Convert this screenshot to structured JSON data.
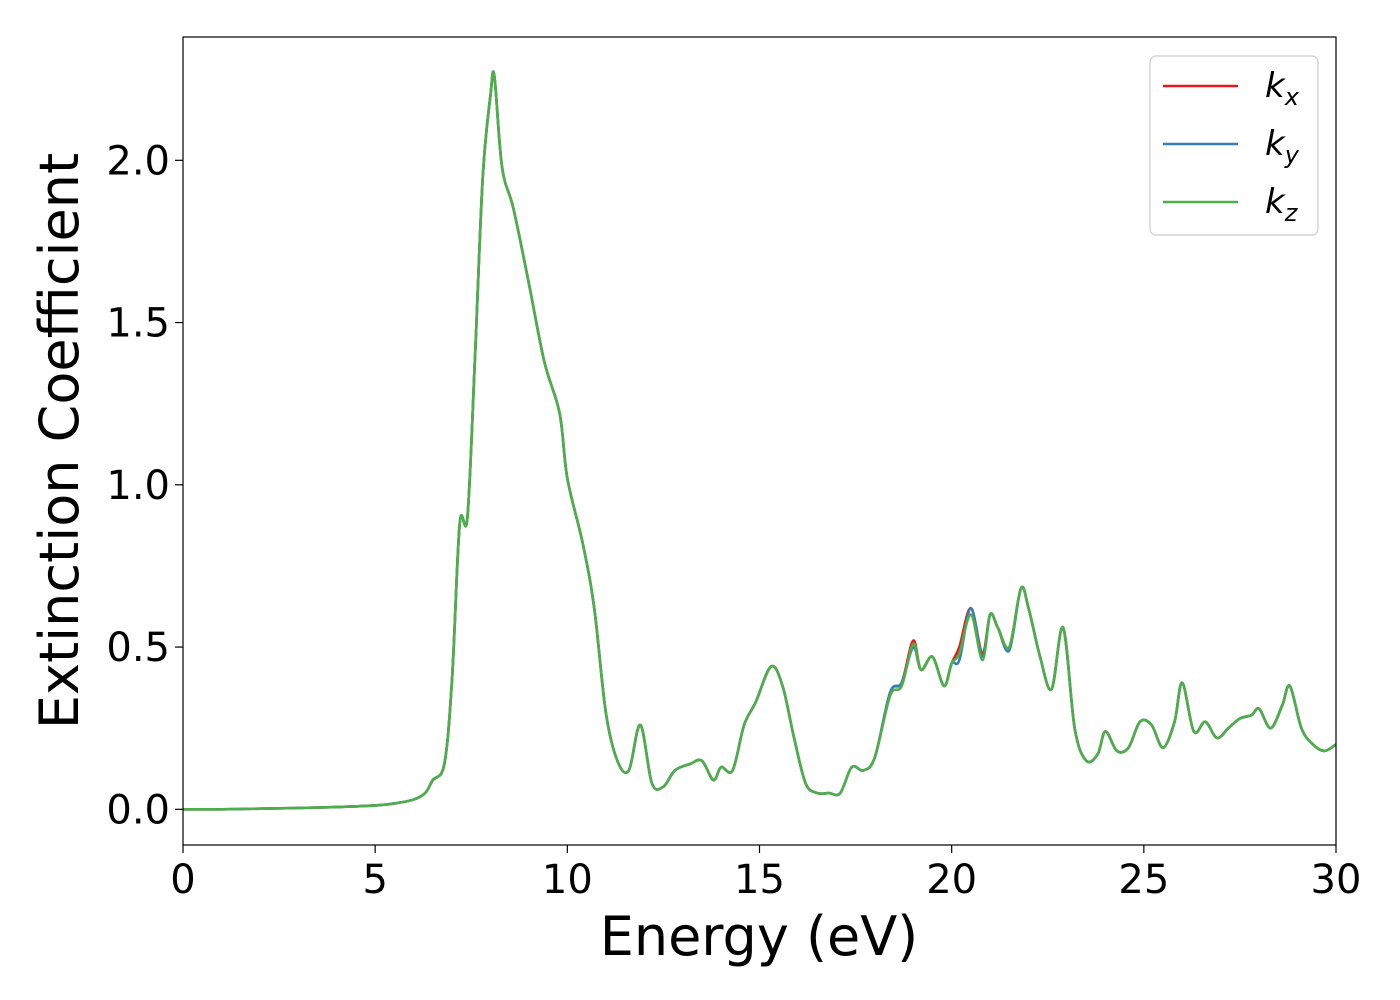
{
  "chart_data": {
    "type": "line",
    "xlabel": "Energy (eV)",
    "ylabel": "Extinction Coefficient",
    "xlim": [
      0,
      30
    ],
    "ylim": [
      -0.11,
      2.38
    ],
    "xticks": [
      0,
      5,
      10,
      15,
      20,
      25,
      30
    ],
    "xtick_labels": [
      "0",
      "5",
      "10",
      "15",
      "20",
      "25",
      "30"
    ],
    "yticks": [
      0.0,
      0.5,
      1.0,
      1.5,
      2.0
    ],
    "ytick_labels": [
      "0.0",
      "0.5",
      "1.0",
      "1.5",
      "2.0"
    ],
    "grid": false,
    "legend_position": "top-right",
    "x": [
      0,
      1,
      2,
      3,
      4,
      5,
      5.5,
      6,
      6.3,
      6.5,
      6.8,
      7.0,
      7.2,
      7.4,
      7.6,
      7.8,
      8.0,
      8.1,
      8.3,
      8.6,
      9.0,
      9.4,
      9.8,
      10.0,
      10.4,
      10.7,
      11.0,
      11.3,
      11.6,
      11.9,
      12.2,
      12.5,
      12.8,
      13.2,
      13.5,
      13.8,
      14.0,
      14.3,
      14.6,
      14.9,
      15.3,
      15.6,
      15.9,
      16.2,
      16.5,
      16.8,
      17.1,
      17.4,
      17.7,
      18.0,
      18.4,
      18.7,
      19.0,
      19.2,
      19.5,
      19.8,
      20.0,
      20.2,
      20.5,
      20.8,
      21.0,
      21.2,
      21.5,
      21.8,
      22.0,
      22.3,
      22.6,
      22.9,
      23.2,
      23.5,
      23.8,
      24.0,
      24.3,
      24.6,
      24.9,
      25.2,
      25.5,
      25.8,
      26.0,
      26.3,
      26.6,
      26.9,
      27.2,
      27.5,
      27.8,
      28.0,
      28.3,
      28.6,
      28.8,
      29.1,
      29.4,
      29.7,
      30.0
    ],
    "series": [
      {
        "name": "kx",
        "color": "#e41a1c",
        "values": [
          0.0,
          0.0,
          0.002,
          0.004,
          0.007,
          0.012,
          0.018,
          0.03,
          0.05,
          0.09,
          0.14,
          0.4,
          0.88,
          0.9,
          1.4,
          1.95,
          2.2,
          2.26,
          1.98,
          1.85,
          1.62,
          1.38,
          1.22,
          1.02,
          0.82,
          0.62,
          0.3,
          0.15,
          0.12,
          0.26,
          0.08,
          0.07,
          0.12,
          0.14,
          0.15,
          0.09,
          0.13,
          0.12,
          0.26,
          0.33,
          0.44,
          0.38,
          0.22,
          0.08,
          0.05,
          0.05,
          0.05,
          0.13,
          0.12,
          0.16,
          0.36,
          0.39,
          0.52,
          0.43,
          0.47,
          0.38,
          0.45,
          0.5,
          0.62,
          0.48,
          0.6,
          0.56,
          0.5,
          0.68,
          0.62,
          0.47,
          0.37,
          0.56,
          0.25,
          0.15,
          0.17,
          0.24,
          0.18,
          0.19,
          0.27,
          0.26,
          0.19,
          0.27,
          0.39,
          0.24,
          0.27,
          0.22,
          0.25,
          0.28,
          0.29,
          0.31,
          0.25,
          0.32,
          0.38,
          0.25,
          0.2,
          0.18,
          0.2
        ]
      },
      {
        "name": "ky",
        "color": "#377eb8",
        "values": [
          0.0,
          0.0,
          0.002,
          0.004,
          0.007,
          0.012,
          0.018,
          0.03,
          0.05,
          0.09,
          0.14,
          0.4,
          0.88,
          0.9,
          1.4,
          1.95,
          2.2,
          2.26,
          1.98,
          1.85,
          1.62,
          1.38,
          1.22,
          1.02,
          0.82,
          0.62,
          0.3,
          0.15,
          0.12,
          0.26,
          0.08,
          0.07,
          0.12,
          0.14,
          0.15,
          0.09,
          0.13,
          0.12,
          0.26,
          0.33,
          0.44,
          0.38,
          0.22,
          0.08,
          0.05,
          0.05,
          0.05,
          0.13,
          0.12,
          0.16,
          0.36,
          0.39,
          0.5,
          0.43,
          0.47,
          0.38,
          0.45,
          0.46,
          0.62,
          0.47,
          0.6,
          0.56,
          0.49,
          0.68,
          0.62,
          0.47,
          0.37,
          0.56,
          0.25,
          0.15,
          0.17,
          0.24,
          0.18,
          0.19,
          0.27,
          0.26,
          0.19,
          0.27,
          0.39,
          0.24,
          0.27,
          0.22,
          0.25,
          0.28,
          0.29,
          0.31,
          0.25,
          0.32,
          0.38,
          0.25,
          0.2,
          0.18,
          0.2
        ]
      },
      {
        "name": "kz",
        "color": "#4daf4a",
        "values": [
          0.0,
          0.0,
          0.002,
          0.004,
          0.007,
          0.012,
          0.018,
          0.03,
          0.05,
          0.09,
          0.14,
          0.4,
          0.88,
          0.9,
          1.4,
          1.95,
          2.2,
          2.26,
          1.98,
          1.85,
          1.62,
          1.38,
          1.22,
          1.02,
          0.82,
          0.62,
          0.3,
          0.15,
          0.12,
          0.26,
          0.08,
          0.07,
          0.12,
          0.14,
          0.15,
          0.09,
          0.13,
          0.12,
          0.26,
          0.33,
          0.44,
          0.38,
          0.22,
          0.08,
          0.05,
          0.05,
          0.05,
          0.13,
          0.12,
          0.16,
          0.35,
          0.38,
          0.51,
          0.43,
          0.47,
          0.38,
          0.45,
          0.48,
          0.6,
          0.46,
          0.6,
          0.56,
          0.5,
          0.68,
          0.62,
          0.47,
          0.37,
          0.56,
          0.25,
          0.15,
          0.17,
          0.24,
          0.18,
          0.19,
          0.27,
          0.26,
          0.19,
          0.27,
          0.39,
          0.24,
          0.27,
          0.22,
          0.25,
          0.28,
          0.29,
          0.31,
          0.25,
          0.32,
          0.38,
          0.25,
          0.2,
          0.18,
          0.2
        ]
      }
    ]
  }
}
